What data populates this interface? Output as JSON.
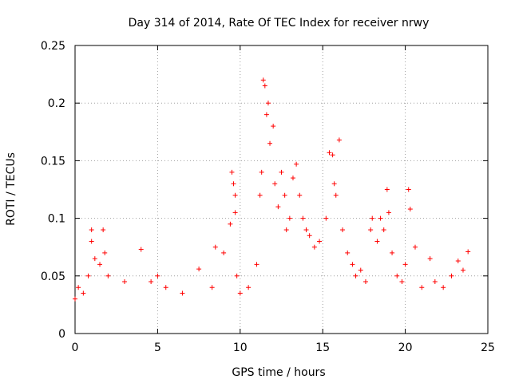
{
  "chart_data": {
    "type": "scatter",
    "title": "Day 314 of 2014, Rate Of TEC Index for receiver nrwy",
    "xlabel": "GPS time / hours",
    "ylabel": "ROTI / TECUs",
    "xlim": [
      0,
      25
    ],
    "ylim": [
      0,
      0.25
    ],
    "x_ticks": [
      "0",
      "5",
      "10",
      "15",
      "20",
      "25"
    ],
    "y_ticks": [
      "0",
      "0.05",
      "0.1",
      "0.15",
      "0.2",
      "0.25"
    ],
    "grid": true,
    "marker": "+",
    "series_color": "#ff0000",
    "series": [
      {
        "name": "ROTI",
        "x": [
          0.0,
          0.2,
          0.5,
          0.8,
          1.0,
          1.0,
          1.2,
          1.5,
          1.7,
          1.8,
          2.0,
          3.0,
          4.0,
          4.6,
          5.0,
          5.5,
          6.5,
          7.5,
          8.3,
          8.5,
          9.0,
          9.4,
          9.5,
          9.6,
          9.7,
          9.7,
          9.8,
          10.0,
          10.5,
          11.0,
          11.2,
          11.3,
          11.4,
          11.5,
          11.6,
          11.7,
          11.8,
          12.0,
          12.1,
          12.3,
          12.5,
          12.7,
          12.8,
          13.0,
          13.2,
          13.4,
          13.6,
          13.8,
          14.0,
          14.2,
          14.5,
          14.8,
          15.2,
          15.4,
          15.6,
          15.7,
          15.8,
          16.0,
          16.2,
          16.5,
          16.8,
          17.0,
          17.3,
          17.6,
          17.9,
          18.0,
          18.3,
          18.5,
          18.7,
          18.9,
          19.0,
          19.2,
          19.5,
          19.8,
          20.0,
          20.2,
          20.3,
          20.6,
          21.0,
          21.5,
          21.8,
          22.3,
          22.8,
          23.2,
          23.5,
          23.8
        ],
        "y": [
          0.03,
          0.04,
          0.035,
          0.05,
          0.09,
          0.08,
          0.065,
          0.06,
          0.09,
          0.07,
          0.05,
          0.045,
          0.073,
          0.045,
          0.05,
          0.04,
          0.035,
          0.056,
          0.04,
          0.075,
          0.07,
          0.095,
          0.14,
          0.13,
          0.12,
          0.105,
          0.05,
          0.035,
          0.04,
          0.06,
          0.12,
          0.14,
          0.22,
          0.215,
          0.19,
          0.2,
          0.165,
          0.18,
          0.13,
          0.11,
          0.14,
          0.12,
          0.09,
          0.1,
          0.135,
          0.147,
          0.12,
          0.1,
          0.09,
          0.085,
          0.075,
          0.08,
          0.1,
          0.157,
          0.155,
          0.13,
          0.12,
          0.168,
          0.09,
          0.07,
          0.06,
          0.05,
          0.055,
          0.045,
          0.09,
          0.1,
          0.08,
          0.1,
          0.09,
          0.125,
          0.105,
          0.07,
          0.05,
          0.045,
          0.06,
          0.125,
          0.108,
          0.075,
          0.04,
          0.065,
          0.045,
          0.04,
          0.05,
          0.063,
          0.055,
          0.071
        ]
      }
    ]
  }
}
